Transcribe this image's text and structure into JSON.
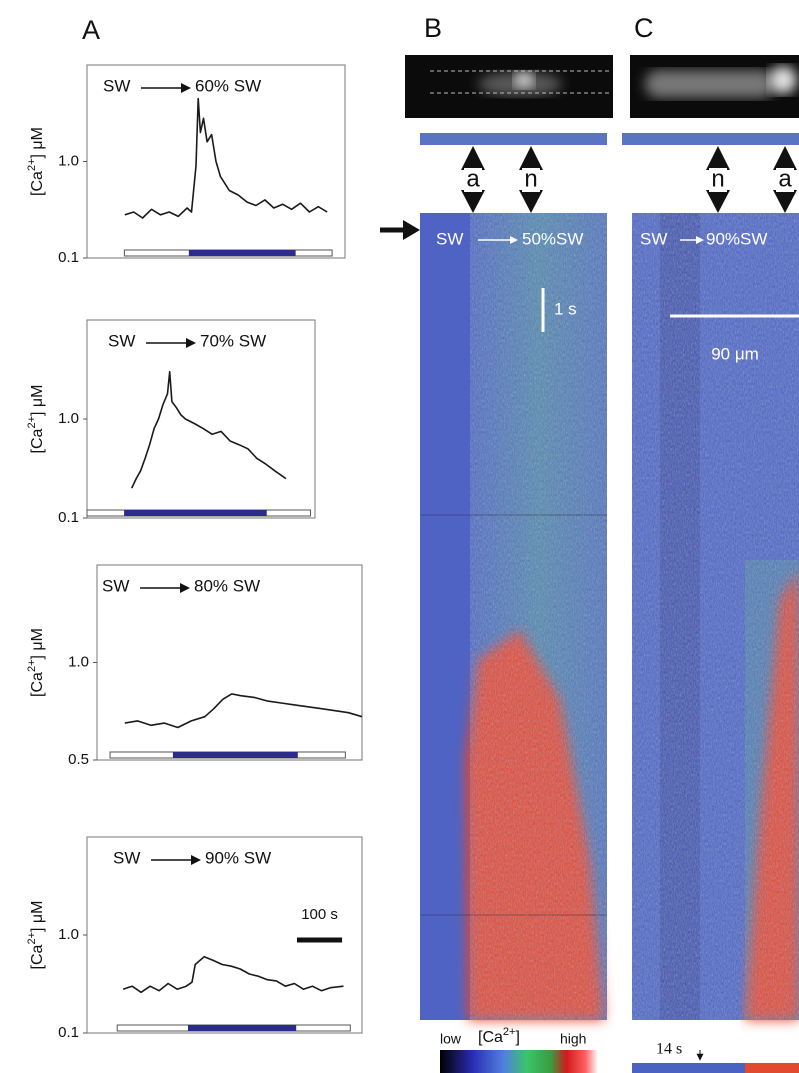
{
  "panel_labels": [
    "A",
    "B",
    "C"
  ],
  "chart_data": [
    {
      "type": "line",
      "annotation_from": "SW",
      "annotation_to": "60% SW",
      "ylabel": [
        "[Ca",
        "2+",
        "] μM"
      ],
      "x": [
        85,
        105,
        125,
        145,
        165,
        185,
        205,
        225,
        235,
        245,
        250,
        255,
        262,
        270,
        280,
        290,
        300,
        320,
        340,
        360,
        380,
        400,
        420,
        440,
        460,
        480,
        500,
        520,
        540
      ],
      "values": [
        0.28,
        0.3,
        0.26,
        0.32,
        0.28,
        0.3,
        0.27,
        0.33,
        0.3,
        0.9,
        4.5,
        2.0,
        2.8,
        1.6,
        1.9,
        1.0,
        0.7,
        0.5,
        0.45,
        0.38,
        0.35,
        0.4,
        0.33,
        0.36,
        0.32,
        0.37,
        0.3,
        0.34,
        0.3
      ],
      "color": "#1a1a1a",
      "log_y": true,
      "xlim": [
        0,
        580
      ],
      "ylim": [
        0.1,
        10
      ],
      "yticks": [
        0.1,
        {
          "value": 1,
          "label": "1.0"
        }
      ],
      "recording_window": [
        84,
        551
      ],
      "stimulus_window": [
        229,
        469
      ],
      "stimulus_color": "#2b2b8c"
    },
    {
      "type": "line",
      "annotation_from": "SW",
      "annotation_to": "70% SW",
      "ylabel": [
        "[Ca",
        "2+",
        "] μM"
      ],
      "x": [
        100,
        110,
        120,
        130,
        140,
        150,
        160,
        170,
        180,
        185,
        190,
        200,
        210,
        220,
        240,
        260,
        280,
        300,
        320,
        340,
        360,
        380,
        400,
        420,
        445
      ],
      "values": [
        0.2,
        0.25,
        0.3,
        0.4,
        0.55,
        0.8,
        1.0,
        1.4,
        1.8,
        3.0,
        1.5,
        1.3,
        1.1,
        1.0,
        0.9,
        0.8,
        0.7,
        0.75,
        0.6,
        0.55,
        0.5,
        0.4,
        0.35,
        0.3,
        0.25
      ],
      "color": "#1a1a1a",
      "log_y": true,
      "xlim": [
        0,
        510
      ],
      "ylim": [
        0.1,
        10
      ],
      "yticks": [
        0.1,
        {
          "value": 1,
          "label": "1.0"
        }
      ],
      "recording_window": [
        0,
        500
      ],
      "stimulus_window": [
        83,
        402
      ],
      "stimulus_color": "#2b2b8c"
    },
    {
      "type": "line",
      "annotation_from": "SW",
      "annotation_to": "80% SW",
      "ylabel": [
        "[Ca",
        "2+",
        "] μM"
      ],
      "x": [
        62,
        90,
        120,
        150,
        180,
        210,
        240,
        260,
        280,
        300,
        320,
        350,
        380,
        410,
        440,
        470,
        500,
        530,
        560,
        590
      ],
      "values": [
        0.65,
        0.66,
        0.64,
        0.65,
        0.63,
        0.66,
        0.68,
        0.72,
        0.77,
        0.8,
        0.79,
        0.78,
        0.76,
        0.75,
        0.74,
        0.73,
        0.72,
        0.71,
        0.7,
        0.68
      ],
      "color": "#1a1a1a",
      "log_y": true,
      "xlim": [
        0,
        590
      ],
      "ylim": [
        0.5,
        2
      ],
      "yticks": [
        0.5,
        {
          "value": 1,
          "label": "1.0"
        }
      ],
      "recording_window": [
        29,
        553
      ],
      "stimulus_window": [
        169,
        447
      ],
      "stimulus_color": "#2b2b8c"
    },
    {
      "type": "line",
      "annotation_from": "SW",
      "annotation_to": "90% SW",
      "ylabel": [
        "[Ca",
        "2+",
        "] μM"
      ],
      "x": [
        80,
        100,
        120,
        140,
        160,
        180,
        200,
        220,
        233,
        240,
        260,
        280,
        300,
        320,
        340,
        360,
        380,
        400,
        420,
        440,
        460,
        480,
        500,
        520,
        540,
        569
      ],
      "values": [
        0.28,
        0.3,
        0.26,
        0.3,
        0.27,
        0.32,
        0.28,
        0.3,
        0.33,
        0.5,
        0.6,
        0.55,
        0.5,
        0.48,
        0.45,
        0.4,
        0.38,
        0.35,
        0.34,
        0.3,
        0.32,
        0.28,
        0.3,
        0.27,
        0.29,
        0.3
      ],
      "color": "#1a1a1a",
      "log_y": true,
      "xlim": [
        0,
        610
      ],
      "ylim": [
        0.1,
        10
      ],
      "yticks": [
        0.1,
        {
          "value": 1,
          "label": "1.0"
        }
      ],
      "recording_window": [
        67,
        584
      ],
      "stimulus_window": [
        224,
        464
      ],
      "stimulus_color": "#2b2b8c",
      "scale_bar": {
        "value": 100,
        "label": "100 s"
      }
    }
  ],
  "kymographs": [
    {
      "label_from": "SW",
      "label_to": "50%SW",
      "regions": [
        "a",
        "n"
      ],
      "scale_text": "1 s"
    },
    {
      "label_from": "SW",
      "label_to": "90%SW",
      "regions": [
        "n",
        "a"
      ],
      "scale_text": "90 μm",
      "time_text": "14 s"
    }
  ],
  "colorbar": {
    "low": "low",
    "mid": [
      "[Ca",
      "2+",
      "]"
    ],
    "high": "high"
  }
}
